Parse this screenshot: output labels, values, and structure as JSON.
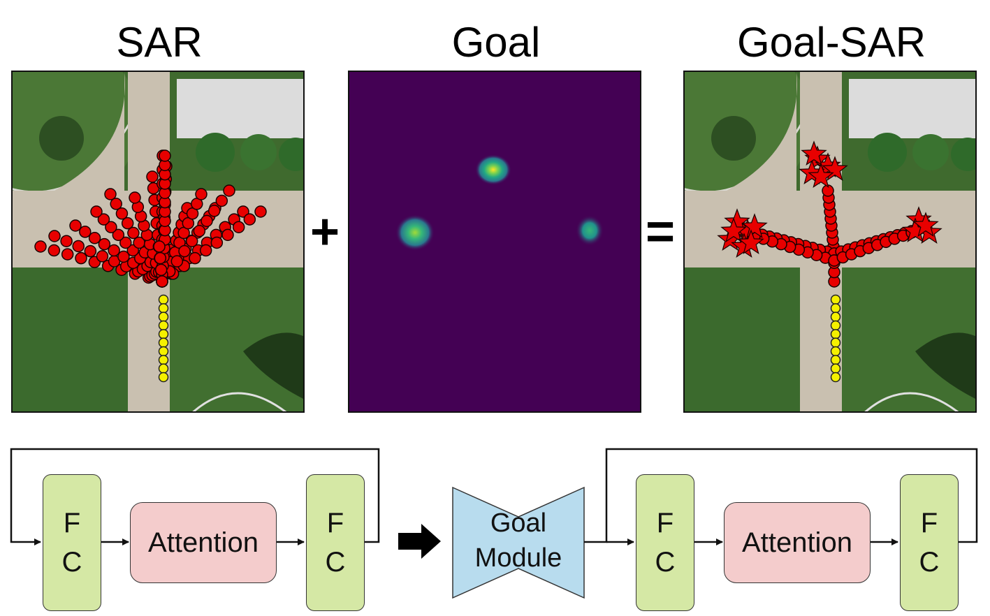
{
  "titles": {
    "sar": "SAR",
    "goal": "Goal",
    "goal_sar": "Goal-SAR"
  },
  "operators": {
    "plus": "+",
    "equals": "="
  },
  "pipeline_left": {
    "fc1": [
      "F",
      "C"
    ],
    "attention": "Attention",
    "fc2": [
      "F",
      "C"
    ]
  },
  "goal_module": {
    "line1": "Goal",
    "line2": "Module"
  },
  "pipeline_right": {
    "fc1": [
      "F",
      "C"
    ],
    "attention": "Attention",
    "fc2": [
      "F",
      "C"
    ]
  },
  "colors": {
    "fc_fill": "#d5e8a5",
    "attention_fill": "#f4cccc",
    "goal_module_fill": "#b8dcee",
    "heatmap_bg": "#440154",
    "prediction": "#e80000",
    "history": "#f5f000",
    "grass": "#3f6a2e",
    "path": "#c9c0b0"
  }
}
